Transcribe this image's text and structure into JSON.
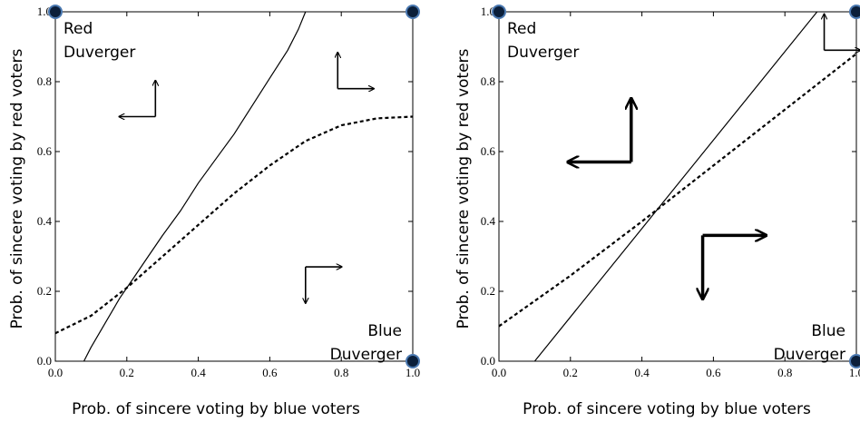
{
  "chart_data": [
    {
      "type": "line",
      "xlabel": "Prob. of sincere voting by blue voters",
      "ylabel": "Prob. of sincere voting by red voters",
      "xlim": [
        0,
        1
      ],
      "ylim": [
        0,
        1
      ],
      "x_ticks": [
        "0.0",
        "0.2",
        "0.4",
        "0.6",
        "0.8",
        "1.0"
      ],
      "y_ticks": [
        "0.0",
        "0.2",
        "0.4",
        "0.6",
        "0.8",
        "1.0"
      ],
      "grid": false,
      "region_labels": [
        {
          "lines": [
            "Red",
            "Duverger"
          ]
        },
        {
          "lines": [
            "Blue",
            "Duverger"
          ]
        }
      ],
      "equilibrium_points": [
        {
          "x": 0,
          "y": 1
        },
        {
          "x": 1,
          "y": 1
        },
        {
          "x": 1,
          "y": 0
        }
      ],
      "series": [
        {
          "style": "solid",
          "points": [
            [
              0.08,
              0.0
            ],
            [
              0.1,
              0.04
            ],
            [
              0.14,
              0.11
            ],
            [
              0.18,
              0.18
            ],
            [
              0.22,
              0.24
            ],
            [
              0.26,
              0.3
            ],
            [
              0.3,
              0.36
            ],
            [
              0.35,
              0.43
            ],
            [
              0.4,
              0.51
            ],
            [
              0.45,
              0.58
            ],
            [
              0.5,
              0.65
            ],
            [
              0.55,
              0.73
            ],
            [
              0.6,
              0.81
            ],
            [
              0.65,
              0.89
            ],
            [
              0.68,
              0.95
            ],
            [
              0.7,
              1.0
            ]
          ]
        },
        {
          "style": "dashed",
          "points": [
            [
              0.0,
              0.08
            ],
            [
              0.1,
              0.13
            ],
            [
              0.2,
              0.21
            ],
            [
              0.3,
              0.3
            ],
            [
              0.4,
              0.39
            ],
            [
              0.5,
              0.48
            ],
            [
              0.6,
              0.56
            ],
            [
              0.7,
              0.63
            ],
            [
              0.8,
              0.675
            ],
            [
              0.9,
              0.695
            ],
            [
              1.0,
              0.7
            ]
          ]
        }
      ],
      "flow_arrows": [
        {
          "x": 0.28,
          "y": 0.7,
          "dx": -1,
          "dy": 1,
          "size": "small"
        },
        {
          "x": 0.79,
          "y": 0.78,
          "dx": 1,
          "dy": 1,
          "size": "small"
        },
        {
          "x": 0.7,
          "y": 0.27,
          "dx": 1,
          "dy": -1,
          "size": "small"
        }
      ]
    },
    {
      "type": "line",
      "xlabel": "Prob. of sincere voting by blue voters",
      "ylabel": "Prob. of sincere voting by red voters",
      "xlim": [
        0,
        1
      ],
      "ylim": [
        0,
        1
      ],
      "x_ticks": [
        "0.0",
        "0.2",
        "0.4",
        "0.6",
        "0.8",
        "1.0"
      ],
      "y_ticks": [
        "0.0",
        "0.2",
        "0.4",
        "0.6",
        "0.8",
        "1.0"
      ],
      "grid": false,
      "region_labels": [
        {
          "lines": [
            "Red",
            "Duverger"
          ]
        },
        {
          "lines": [
            "Blue",
            "Duverger"
          ]
        }
      ],
      "equilibrium_points": [
        {
          "x": 0,
          "y": 1
        },
        {
          "x": 1,
          "y": 1
        },
        {
          "x": 1,
          "y": 0
        }
      ],
      "series": [
        {
          "style": "solid",
          "points": [
            [
              0.1,
              0.0
            ],
            [
              0.89,
              1.0
            ]
          ]
        },
        {
          "style": "dashed",
          "points": [
            [
              0.0,
              0.1
            ],
            [
              0.2,
              0.245
            ],
            [
              0.4,
              0.4
            ],
            [
              0.6,
              0.56
            ],
            [
              0.8,
              0.72
            ],
            [
              1.0,
              0.88
            ]
          ]
        }
      ],
      "flow_arrows": [
        {
          "x": 0.37,
          "y": 0.57,
          "dx": -1,
          "dy": 1,
          "size": "large"
        },
        {
          "x": 0.57,
          "y": 0.36,
          "dx": 1,
          "dy": -1,
          "size": "large"
        },
        {
          "x": 0.91,
          "y": 0.89,
          "dx": 1,
          "dy": 1,
          "size": "small"
        }
      ]
    }
  ]
}
